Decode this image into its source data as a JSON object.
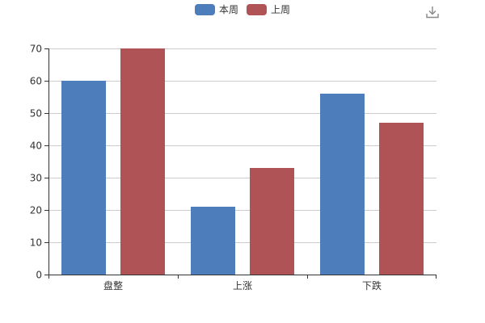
{
  "chart_data": {
    "type": "bar",
    "title": "",
    "xlabel": "",
    "ylabel": "",
    "categories": [
      "盘整",
      "上涨",
      "下跌"
    ],
    "series": [
      {
        "name": "本周",
        "values": [
          60,
          21,
          56
        ],
        "color": "#4d7ebb"
      },
      {
        "name": "上周",
        "values": [
          70,
          33,
          47
        ],
        "color": "#b05357"
      }
    ],
    "ylim": [
      0,
      70
    ],
    "yticks": [
      0,
      10,
      20,
      30,
      40,
      50,
      60,
      70
    ],
    "grid": true,
    "legend_position": "top-center"
  },
  "legend": {
    "items": [
      {
        "label": "本周",
        "color": "#4d7ebb"
      },
      {
        "label": "上周",
        "color": "#b05357"
      }
    ]
  },
  "toolbox": {
    "icon": "download-icon"
  }
}
